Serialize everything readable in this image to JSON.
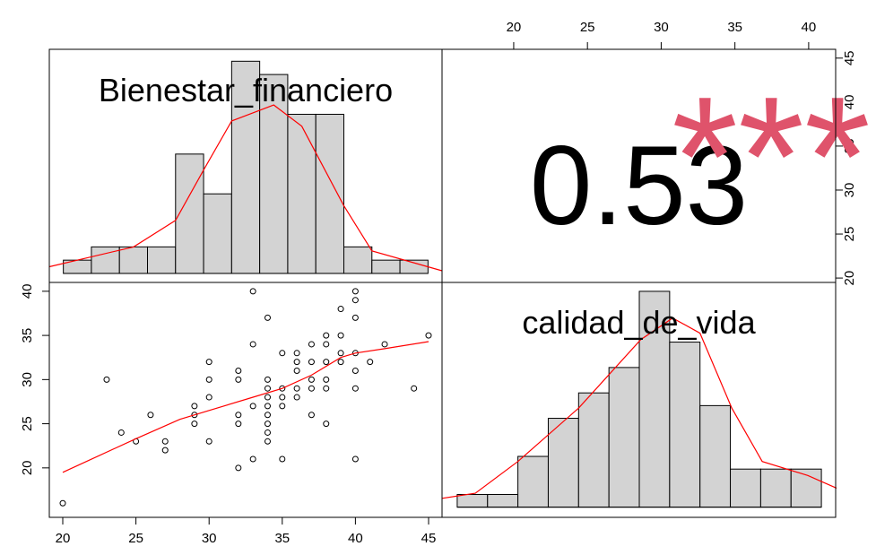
{
  "chart_data": [
    {
      "type": "histogram",
      "title": "Bienestar_financiero",
      "bins": [
        20,
        22,
        24,
        26,
        28,
        30,
        32,
        34,
        36,
        38,
        40,
        42,
        44,
        46
      ],
      "values": [
        1,
        2,
        2,
        2,
        9,
        6,
        16,
        15,
        12,
        12,
        2,
        1,
        1
      ],
      "color": "#d3d3d3",
      "xlim": [
        19,
        47
      ],
      "ylim": [
        -0.68,
        16.9
      ],
      "density": {
        "color": "red",
        "x": [
          19,
          25,
          28,
          30,
          32,
          35,
          37,
          40,
          42,
          47
        ],
        "y": [
          0.5,
          2,
          4,
          7.8,
          11.5,
          12.7,
          11.1,
          5.1,
          1.7,
          0.2
        ]
      }
    },
    {
      "type": "correlation",
      "value": 0.53,
      "stars": "***",
      "stars_color": "#DF536B",
      "xlim": [
        15.14,
        41.83
      ],
      "xticks": [
        20,
        25,
        30,
        35,
        40
      ],
      "ylim": [
        19.5,
        46.0
      ],
      "yticks": [
        20,
        25,
        30,
        35,
        40,
        45
      ]
    },
    {
      "type": "scatter",
      "x": [
        20,
        23,
        24,
        25,
        26,
        27,
        27,
        29,
        29,
        29,
        30,
        30,
        30,
        30,
        32,
        32,
        32,
        32,
        32,
        33,
        33,
        33,
        33,
        34,
        34,
        34,
        34,
        34,
        34,
        34,
        34,
        34,
        35,
        35,
        35,
        35,
        35,
        36,
        36,
        36,
        36,
        36,
        37,
        37,
        37,
        37,
        37,
        38,
        38,
        38,
        38,
        38,
        38,
        39,
        39,
        39,
        39,
        40,
        40,
        40,
        40,
        40,
        40,
        40,
        41,
        42,
        44,
        45
      ],
      "y": [
        16,
        30,
        24,
        23,
        26,
        23,
        22,
        27,
        26,
        25,
        32,
        30,
        28,
        23,
        31,
        30,
        26,
        25,
        20,
        40,
        34,
        27,
        21,
        37,
        30,
        29,
        28,
        27,
        26,
        25,
        24,
        23,
        33,
        29,
        28,
        27,
        21,
        33,
        32,
        31,
        29,
        28,
        34,
        32,
        30,
        29,
        26,
        35,
        34,
        32,
        30,
        29,
        25,
        38,
        35,
        33,
        32,
        40,
        39,
        37,
        33,
        31,
        29,
        21,
        32,
        34,
        29,
        35
      ],
      "color": "black",
      "fit": {
        "color": "red",
        "x": [
          20,
          25,
          28,
          30,
          33,
          35,
          37,
          39,
          40,
          42,
          45
        ],
        "y": [
          19.5,
          23.3,
          25.5,
          26.5,
          28,
          29,
          30.5,
          32.5,
          33,
          33.5,
          34.3
        ]
      },
      "xlim": [
        19.08,
        45.92
      ],
      "xticks": [
        20,
        25,
        30,
        35,
        40,
        45
      ],
      "ylim": [
        14.4,
        41.0
      ],
      "yticks": [
        20,
        25,
        30,
        35,
        40
      ]
    },
    {
      "type": "histogram",
      "title": "calidad_de_vida",
      "bins": [
        16,
        18,
        20,
        22,
        24,
        26,
        28,
        30,
        32,
        34,
        36,
        38,
        40
      ],
      "values": [
        1,
        1,
        4,
        7,
        9,
        11,
        17,
        13,
        8,
        3,
        3,
        3
      ],
      "color": "#d3d3d3",
      "xlim": [
        15,
        40.94
      ],
      "ylim": [
        -0.8,
        17.7
      ],
      "density": {
        "color": "red",
        "x": [
          15,
          17.2,
          20,
          24,
          28.1,
          30.2,
          32,
          34.1,
          36.1,
          39.1,
          41
        ],
        "y": [
          0.7,
          1.1,
          3.6,
          7.8,
          13.2,
          14.9,
          13.7,
          7.8,
          3.6,
          2.5,
          1.5
        ]
      }
    }
  ]
}
